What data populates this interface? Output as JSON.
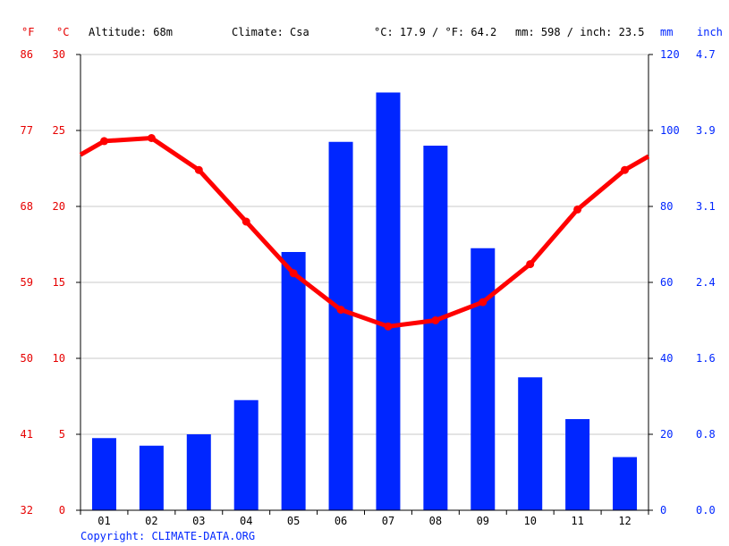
{
  "header": {
    "unit_f": "°F",
    "unit_c": "°C",
    "altitude": "Altitude: 68m",
    "climate": "Climate: Csa",
    "avg_temp": "°C: 17.9 / °F: 64.2",
    "precip_total": "mm: 598 / inch: 23.5",
    "unit_mm": "mm",
    "unit_inch": "inch"
  },
  "copyright": "Copyright: CLIMATE-DATA.ORG",
  "colors": {
    "temperature": "#ff0000",
    "precipitation": "#0026ff",
    "temp_axis_text": "#e60000",
    "precip_axis_text": "#0026ff",
    "grid": "#c8c8c8"
  },
  "chart_data": {
    "type": "bar+line",
    "categories": [
      "01",
      "02",
      "03",
      "04",
      "05",
      "06",
      "07",
      "08",
      "09",
      "10",
      "11",
      "12"
    ],
    "series": [
      {
        "type": "bar",
        "axis": "right",
        "unit": "mm",
        "values": [
          19,
          17,
          20,
          29,
          68,
          97,
          110,
          96,
          69,
          35,
          24,
          14
        ]
      },
      {
        "type": "line",
        "axis": "left",
        "unit": "°C",
        "values": [
          24.3,
          24.5,
          22.4,
          19.0,
          15.6,
          13.2,
          12.1,
          12.5,
          13.7,
          16.2,
          19.8,
          22.4
        ]
      }
    ],
    "temp_line_ends": [
      23.4,
      23.3
    ],
    "y_left_c": {
      "range": [
        0,
        30
      ],
      "ticks": [
        "0",
        "5",
        "10",
        "15",
        "20",
        "25",
        "30"
      ]
    },
    "y_left_f": {
      "ticks": [
        "32",
        "41",
        "50",
        "59",
        "68",
        "77",
        "86"
      ]
    },
    "y_right_mm": {
      "range": [
        0,
        120
      ],
      "ticks": [
        "0",
        "20",
        "40",
        "60",
        "80",
        "100",
        "120"
      ]
    },
    "y_right_inch": {
      "ticks": [
        "0.0",
        "0.8",
        "1.6",
        "2.4",
        "3.1",
        "3.9",
        "4.7"
      ]
    },
    "grid": true
  }
}
